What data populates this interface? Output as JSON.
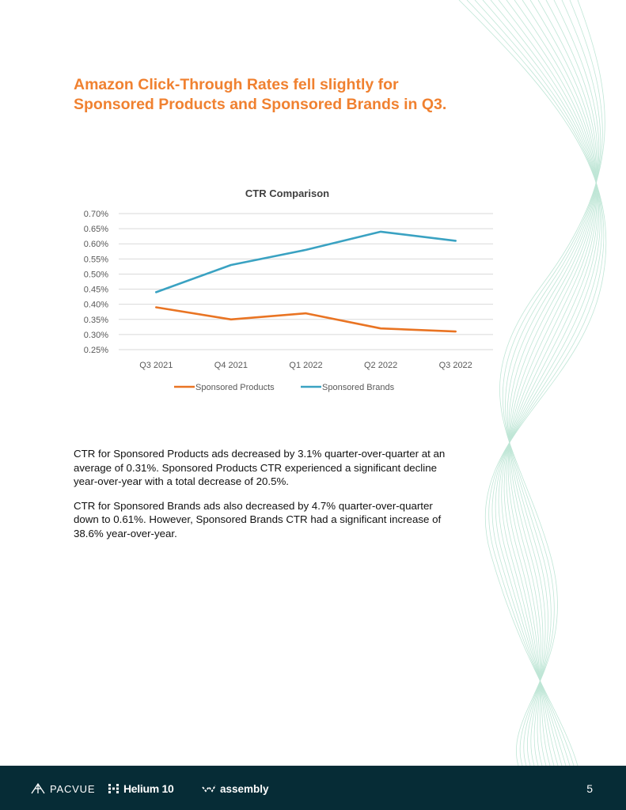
{
  "heading": "Amazon Click-Through Rates fell slightly for Sponsored Products and Sponsored Brands in Q3.",
  "paragraphs": [
    "CTR for Sponsored Products ads decreased by 3.1% quarter-over-quarter at an average of 0.31%. Sponsored Products CTR experienced a significant decline year-over-year with a total decrease of 20.5%.",
    "CTR for Sponsored Brands ads also decreased by 4.7% quarter-over-quarter down to 0.61%. However, Sponsored Brands CTR had a significant increase of 38.6% year-over-year."
  ],
  "chart_data": {
    "type": "line",
    "title": "CTR Comparison",
    "categories": [
      "Q3 2021",
      "Q4 2021",
      "Q1 2022",
      "Q2 2022",
      "Q3 2022"
    ],
    "series": [
      {
        "name": "Sponsored Products",
        "color": "#e97423",
        "values": [
          0.39,
          0.35,
          0.37,
          0.32,
          0.31
        ]
      },
      {
        "name": "Sponsored Brands",
        "color": "#3aa2c2",
        "values": [
          0.44,
          0.53,
          0.58,
          0.64,
          0.61
        ]
      }
    ],
    "yticks": [
      "0.70%",
      "0.65%",
      "0.60%",
      "0.55%",
      "0.50%",
      "0.45%",
      "0.40%",
      "0.35%",
      "0.30%",
      "0.25%"
    ],
    "ylim": [
      0.25,
      0.7
    ],
    "xlabel": "",
    "ylabel": "",
    "grid": true,
    "legend": "bottom"
  },
  "footer": {
    "logos": {
      "pacvue": "PACVUE",
      "helium": "Helium 10",
      "assembly": "assembly"
    },
    "page_number": "5"
  }
}
